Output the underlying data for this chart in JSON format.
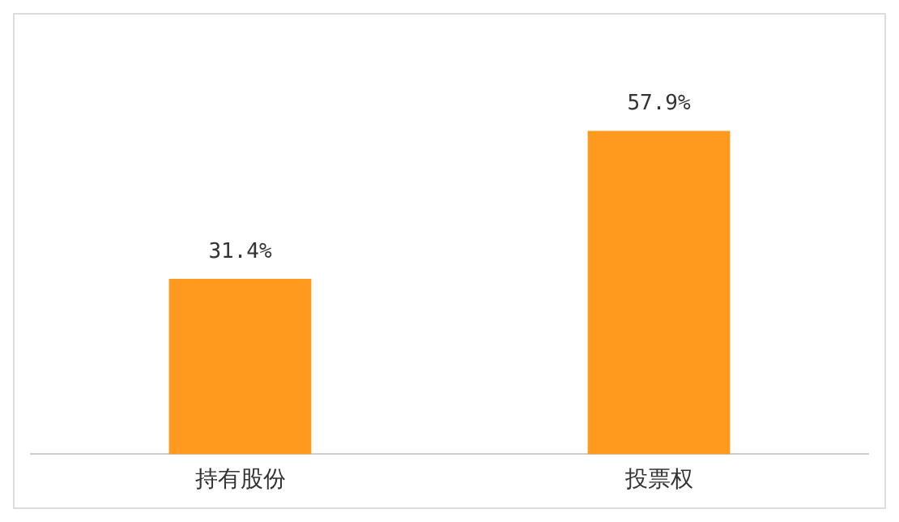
{
  "chart_data": {
    "type": "bar",
    "categories": [
      "持有股份",
      "投票权"
    ],
    "values": [
      31.4,
      57.9
    ],
    "color": "#ff9a1e",
    "value_labels": [
      "31.4%",
      "57.9%"
    ],
    "grid": false,
    "legend": false
  }
}
